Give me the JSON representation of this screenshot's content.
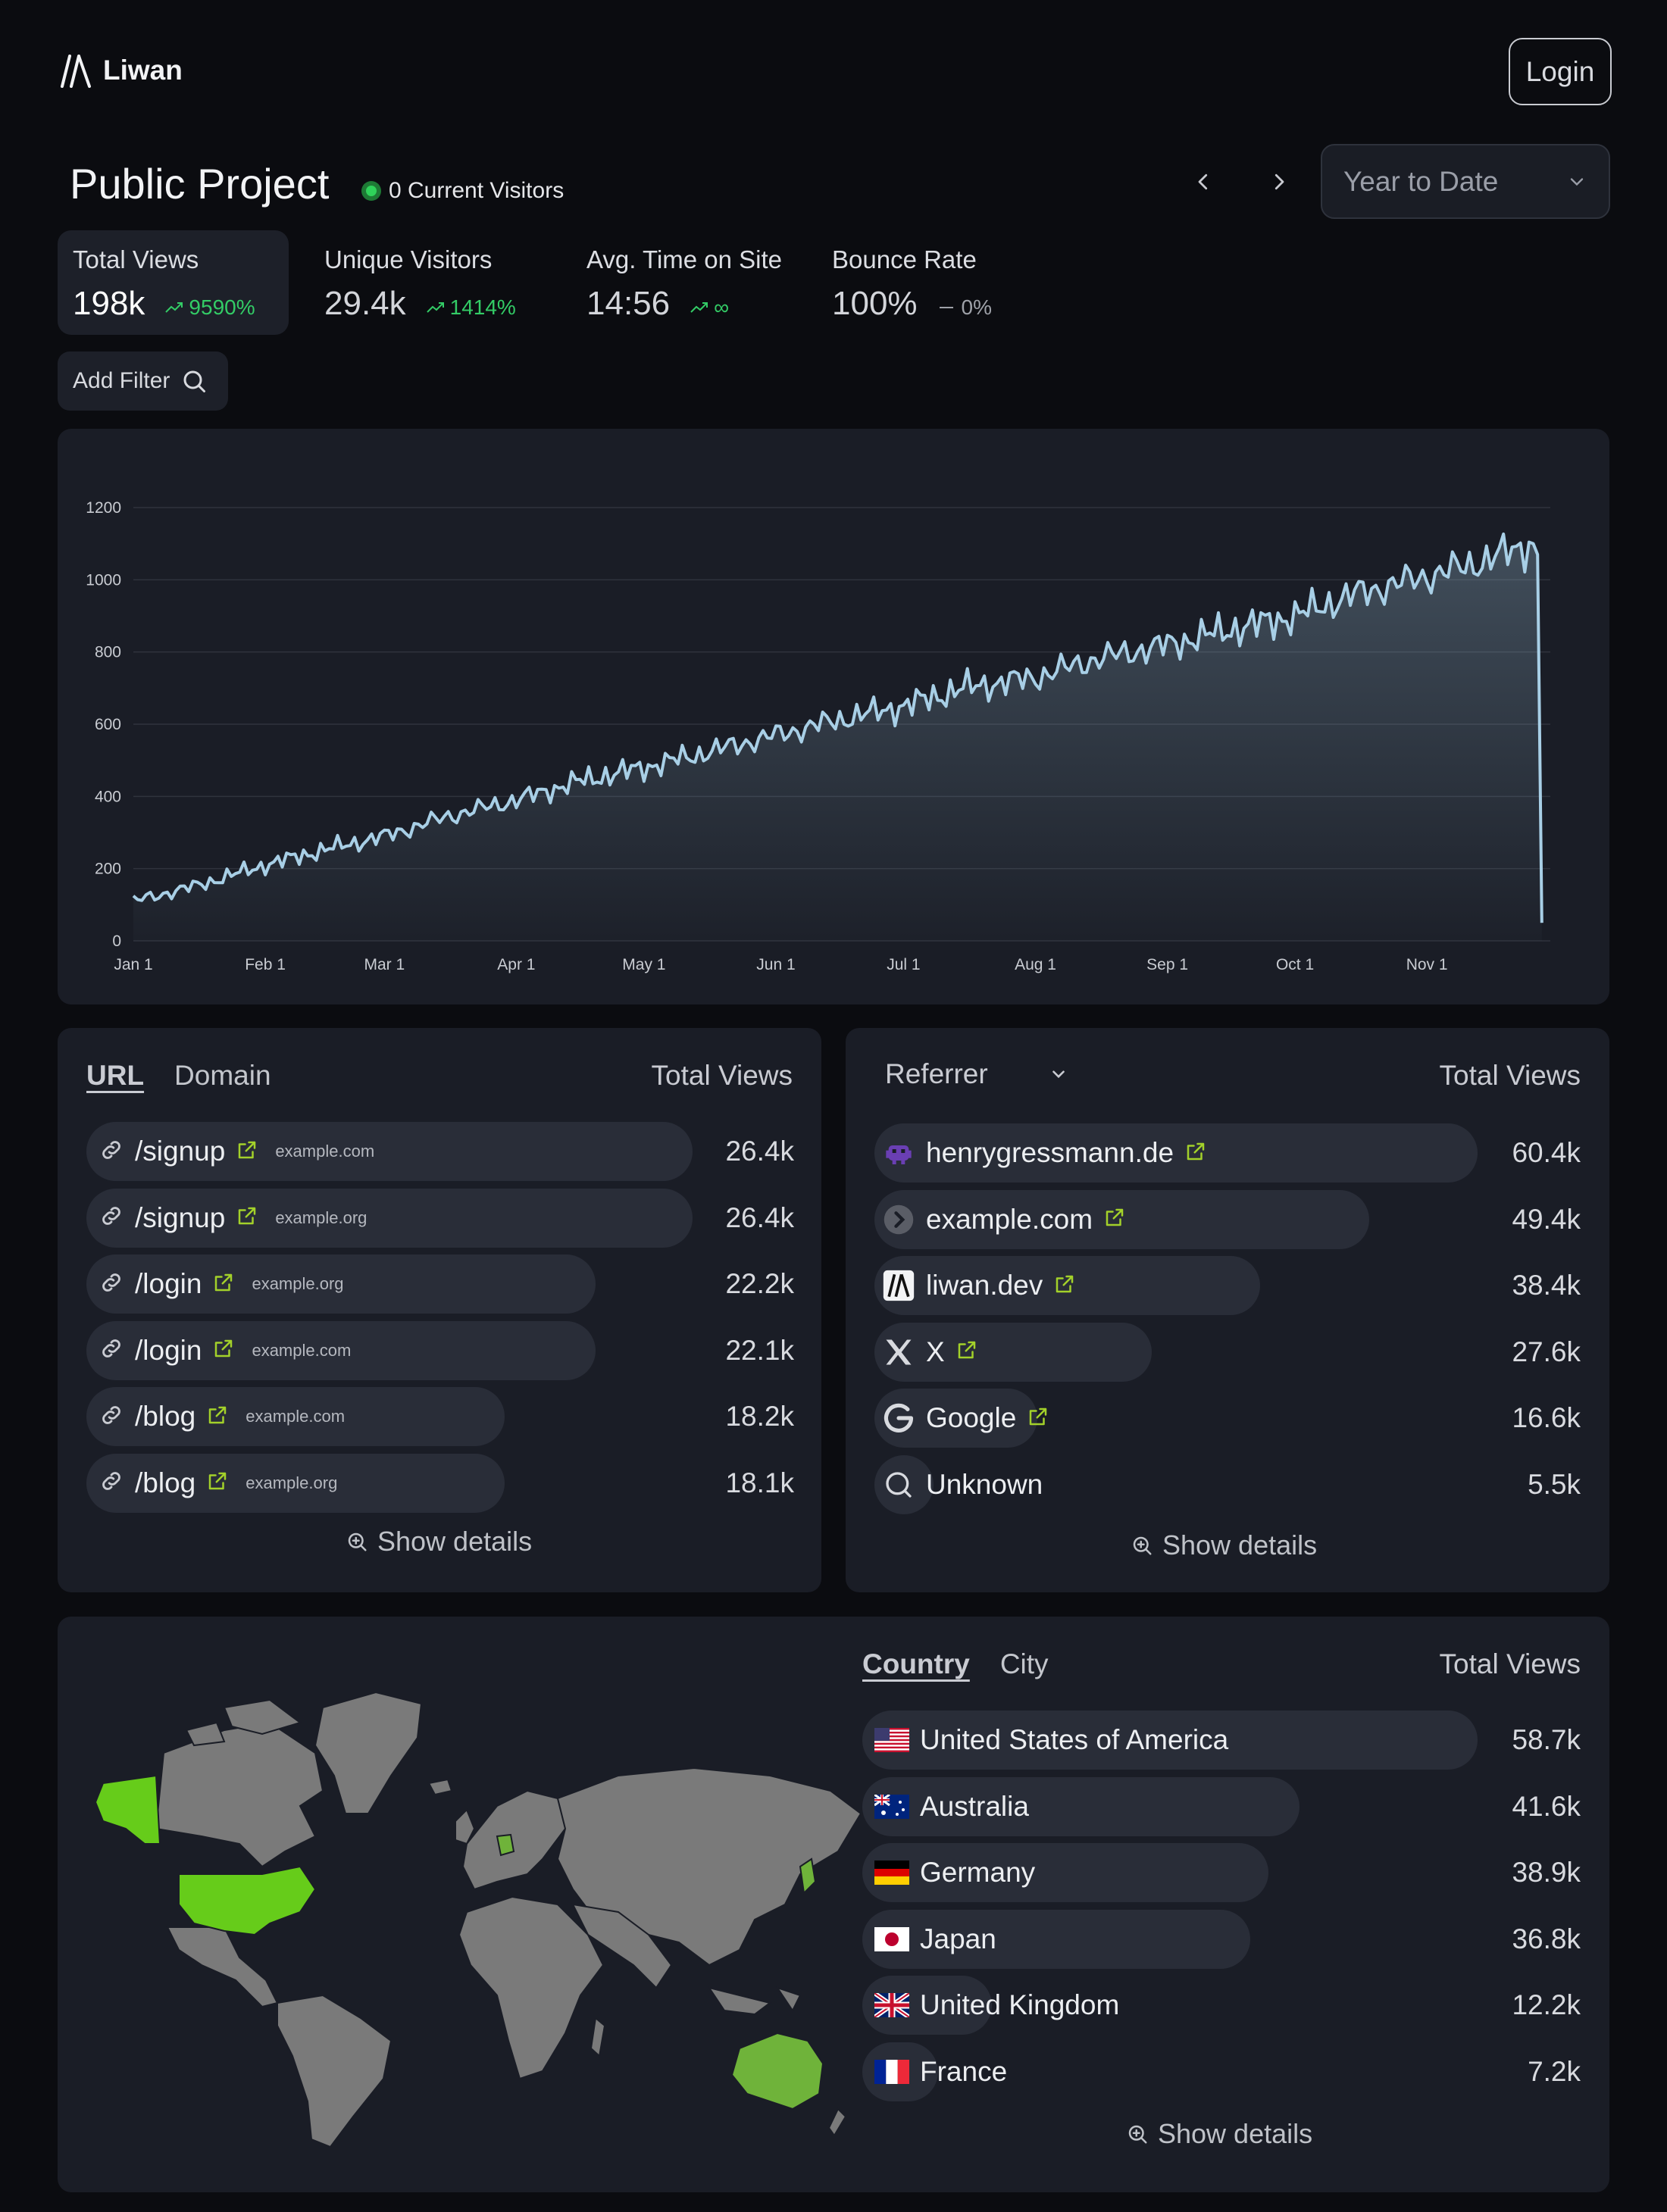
{
  "app": {
    "name": "Liwan",
    "login_label": "Login"
  },
  "project": {
    "title": "Public Project",
    "current_visitors": "0 Current Visitors"
  },
  "date_range": {
    "selected": "Year to Date"
  },
  "stats": [
    {
      "label": "Total Views",
      "value": "198k",
      "delta": "9590%",
      "trend": "up"
    },
    {
      "label": "Unique Visitors",
      "value": "29.4k",
      "delta": "1414%",
      "trend": "up"
    },
    {
      "label": "Avg. Time on Site",
      "value": "14:56",
      "delta": "∞",
      "trend": "up"
    },
    {
      "label": "Bounce Rate",
      "value": "100%",
      "delta": "0%",
      "trend": "neutral"
    }
  ],
  "filter": {
    "add_label": "Add Filter"
  },
  "chart_data": {
    "type": "area",
    "x_ticks": [
      "Jan 1",
      "Feb 1",
      "Mar 1",
      "Apr 1",
      "May 1",
      "Jun 1",
      "Jul 1",
      "Aug 1",
      "Sep 1",
      "Oct 1",
      "Nov 1"
    ],
    "y_ticks": [
      0,
      200,
      400,
      600,
      800,
      1000,
      1200
    ],
    "ylim": [
      0,
      1200
    ],
    "x_day_range": [
      1,
      334
    ],
    "series": [
      {
        "x": [
          1,
          15,
          32,
          45,
          60,
          75,
          91,
          105,
          121,
          135,
          152,
          166,
          182,
          196,
          213,
          227,
          244,
          258,
          274,
          288,
          305,
          315,
          325,
          330,
          331,
          332
        ],
        "y": [
          110,
          150,
          210,
          250,
          290,
          345,
          390,
          440,
          480,
          520,
          570,
          610,
          650,
          700,
          730,
          780,
          820,
          860,
          900,
          960,
          1010,
          1040,
          1080,
          1100,
          1070,
          50
        ]
      }
    ],
    "grid": true,
    "line_color": "#a8cfe6"
  },
  "pages": {
    "tabs": [
      "URL",
      "Domain"
    ],
    "column": "Total Views",
    "rows": [
      {
        "path": "/signup",
        "domain": "example.com",
        "value": "26.4k",
        "share": 1.0
      },
      {
        "path": "/signup",
        "domain": "example.org",
        "value": "26.4k",
        "share": 1.0
      },
      {
        "path": "/login",
        "domain": "example.org",
        "value": "22.2k",
        "share": 0.84
      },
      {
        "path": "/login",
        "domain": "example.com",
        "value": "22.1k",
        "share": 0.84
      },
      {
        "path": "/blog",
        "domain": "example.com",
        "value": "18.2k",
        "share": 0.69
      },
      {
        "path": "/blog",
        "domain": "example.org",
        "value": "18.1k",
        "share": 0.69
      }
    ],
    "show_details": "Show details"
  },
  "referrers": {
    "selector": "Referrer",
    "column": "Total Views",
    "rows": [
      {
        "name": "henrygressmann.de",
        "value": "60.4k",
        "share": 1.0,
        "icon": "alien-icon",
        "external": true
      },
      {
        "name": "example.com",
        "value": "49.4k",
        "share": 0.82,
        "icon": "chevron-right-icon",
        "external": true
      },
      {
        "name": "liwan.dev",
        "value": "38.4k",
        "share": 0.64,
        "icon": "liwan-logo-icon",
        "external": true
      },
      {
        "name": "X",
        "value": "27.6k",
        "share": 0.46,
        "icon": "x-logo-icon",
        "external": true
      },
      {
        "name": "Google",
        "value": "16.6k",
        "share": 0.27,
        "icon": "google-logo-icon",
        "external": true
      },
      {
        "name": "Unknown",
        "value": "5.5k",
        "share": 0.09,
        "icon": "search-icon",
        "external": false
      }
    ],
    "show_details": "Show details"
  },
  "geo": {
    "tabs": [
      "Country",
      "City"
    ],
    "column": "Total Views",
    "rows": [
      {
        "name": "United States of America",
        "value": "58.7k",
        "share": 1.0,
        "flag": "us"
      },
      {
        "name": "Australia",
        "value": "41.6k",
        "share": 0.71,
        "flag": "au"
      },
      {
        "name": "Germany",
        "value": "38.9k",
        "share": 0.66,
        "flag": "de"
      },
      {
        "name": "Japan",
        "value": "36.8k",
        "share": 0.63,
        "flag": "jp"
      },
      {
        "name": "United Kingdom",
        "value": "12.2k",
        "share": 0.21,
        "flag": "gb"
      },
      {
        "name": "France",
        "value": "7.2k",
        "share": 0.12,
        "flag": "fr"
      }
    ],
    "show_details": "Show details",
    "map_colors": {
      "land": "#7a7a7a",
      "highlight": "#66cc1a",
      "highlight_soft": "#6fb33a"
    }
  }
}
